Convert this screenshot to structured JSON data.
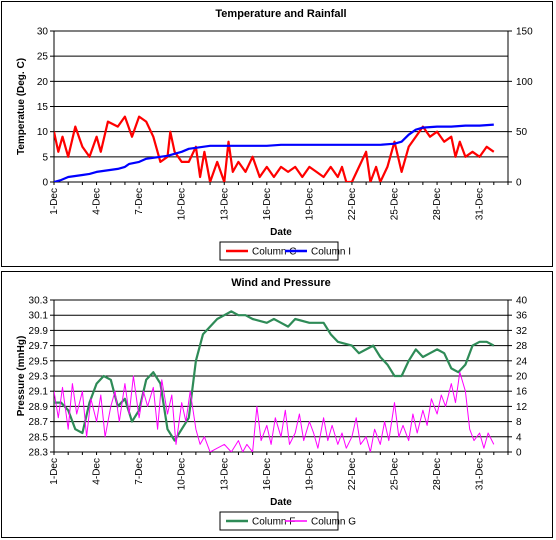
{
  "chart_data": [
    {
      "type": "line",
      "title": "Temperature and Rainfall",
      "xlabel": "Date",
      "ylabel": "Temperatue (Deg. C)",
      "x_tick_labels": [
        "1-Dec",
        "4-Dec",
        "7-Dec",
        "10-Dec",
        "13-Dec",
        "16-Dec",
        "19-Dec",
        "22-Dec",
        "25-Dec",
        "28-Dec",
        "31-Dec"
      ],
      "x_range": [
        1,
        33
      ],
      "y_ticks": [
        "0",
        "5",
        "10",
        "15",
        "20",
        "25",
        "30"
      ],
      "y2_ticks": [
        "0",
        "50",
        "100",
        "150"
      ],
      "ylim": [
        0,
        30
      ],
      "y2lim": [
        0,
        150
      ],
      "grid": true,
      "legend_position": "bottom",
      "series": [
        {
          "name": "Column C",
          "axis": "left",
          "color": "#ff0000",
          "points": [
            [
              1,
              10
            ],
            [
              1.3,
              6
            ],
            [
              1.6,
              9
            ],
            [
              2,
              5
            ],
            [
              2.5,
              11
            ],
            [
              3,
              7
            ],
            [
              3.5,
              5
            ],
            [
              4,
              9
            ],
            [
              4.3,
              6
            ],
            [
              4.8,
              12
            ],
            [
              5.5,
              11
            ],
            [
              6,
              13
            ],
            [
              6.5,
              9
            ],
            [
              7,
              13
            ],
            [
              7.5,
              12
            ],
            [
              8,
              9
            ],
            [
              8.5,
              4
            ],
            [
              9,
              5
            ],
            [
              9.2,
              10
            ],
            [
              9.5,
              6
            ],
            [
              10,
              4
            ],
            [
              10.5,
              4
            ],
            [
              11,
              7
            ],
            [
              11.3,
              1
            ],
            [
              11.6,
              6
            ],
            [
              12,
              0
            ],
            [
              12.5,
              4
            ],
            [
              13,
              0
            ],
            [
              13.3,
              8
            ],
            [
              13.6,
              2
            ],
            [
              14,
              4
            ],
            [
              14.5,
              2
            ],
            [
              15,
              5
            ],
            [
              15.5,
              1
            ],
            [
              16,
              3
            ],
            [
              16.5,
              1
            ],
            [
              17,
              3
            ],
            [
              17.5,
              2
            ],
            [
              18,
              3
            ],
            [
              18.5,
              1
            ],
            [
              19,
              3
            ],
            [
              19.5,
              2
            ],
            [
              20,
              1
            ],
            [
              20.5,
              3
            ],
            [
              21,
              1
            ],
            [
              21.3,
              3
            ],
            [
              21.6,
              0
            ],
            [
              22,
              0
            ],
            [
              22.5,
              3
            ],
            [
              23,
              6
            ],
            [
              23.3,
              0
            ],
            [
              23.7,
              3
            ],
            [
              24,
              0
            ],
            [
              24.5,
              3
            ],
            [
              25,
              8
            ],
            [
              25.5,
              2
            ],
            [
              26,
              7
            ],
            [
              26.5,
              9
            ],
            [
              27,
              11
            ],
            [
              27.5,
              9
            ],
            [
              28,
              10
            ],
            [
              28.5,
              8
            ],
            [
              29,
              9
            ],
            [
              29.3,
              5
            ],
            [
              29.6,
              8
            ],
            [
              30,
              5
            ],
            [
              30.5,
              6
            ],
            [
              31,
              5
            ],
            [
              31.5,
              7
            ],
            [
              32,
              6
            ]
          ]
        },
        {
          "name": "Column I",
          "axis": "right",
          "color": "#0000ff",
          "points": [
            [
              1,
              0
            ],
            [
              1.5,
              2
            ],
            [
              2,
              5
            ],
            [
              2.5,
              6
            ],
            [
              3,
              7
            ],
            [
              3.5,
              8
            ],
            [
              4,
              10
            ],
            [
              4.5,
              11
            ],
            [
              5,
              12
            ],
            [
              5.5,
              13
            ],
            [
              6,
              15
            ],
            [
              6.3,
              18
            ],
            [
              7,
              20
            ],
            [
              7.5,
              23
            ],
            [
              8,
              24
            ],
            [
              8.5,
              25
            ],
            [
              9,
              26
            ],
            [
              9.5,
              28
            ],
            [
              10,
              30
            ],
            [
              10.5,
              33
            ],
            [
              11,
              34
            ],
            [
              11.5,
              35
            ],
            [
              12,
              36
            ],
            [
              13,
              36
            ],
            [
              14,
              36
            ],
            [
              15,
              36
            ],
            [
              16,
              36
            ],
            [
              17,
              37
            ],
            [
              18,
              37
            ],
            [
              19,
              37
            ],
            [
              20,
              37
            ],
            [
              21,
              37
            ],
            [
              22,
              37
            ],
            [
              23,
              37
            ],
            [
              24,
              37
            ],
            [
              25,
              38
            ],
            [
              25.5,
              40
            ],
            [
              26,
              47
            ],
            [
              26.5,
              52
            ],
            [
              27,
              54
            ],
            [
              28,
              55
            ],
            [
              29,
              55
            ],
            [
              30,
              56
            ],
            [
              31,
              56
            ],
            [
              32,
              57
            ]
          ]
        }
      ]
    },
    {
      "type": "line",
      "title": "Wind and Pressure",
      "xlabel": "Date",
      "ylabel": "Pressure (mnHg)",
      "x_tick_labels": [
        "1-Dec",
        "4-Dec",
        "7-Dec",
        "10-Dec",
        "13-Dec",
        "16-Dec",
        "19-Dec",
        "22-Dec",
        "25-Dec",
        "28-Dec",
        "31-Dec"
      ],
      "x_range": [
        1,
        33
      ],
      "y_ticks": [
        "28.3",
        "28.5",
        "28.7",
        "28.9",
        "29.1",
        "29.3",
        "29.5",
        "29.7",
        "29.9",
        "30.1",
        "30.3"
      ],
      "y2_ticks": [
        "0",
        "4",
        "8",
        "12",
        "16",
        "20",
        "24",
        "28",
        "32",
        "36",
        "40"
      ],
      "ylim": [
        28.3,
        30.3
      ],
      "y2lim": [
        0,
        40
      ],
      "grid": true,
      "legend_position": "bottom",
      "series": [
        {
          "name": "Column F",
          "axis": "left",
          "color": "#2e8b57",
          "points": [
            [
              1,
              28.95
            ],
            [
              1.5,
              28.95
            ],
            [
              2,
              28.85
            ],
            [
              2.5,
              28.6
            ],
            [
              3,
              28.55
            ],
            [
              3.5,
              28.95
            ],
            [
              4,
              29.2
            ],
            [
              4.5,
              29.3
            ],
            [
              5,
              29.25
            ],
            [
              5.5,
              28.9
            ],
            [
              6,
              29.0
            ],
            [
              6.5,
              28.7
            ],
            [
              7,
              28.85
            ],
            [
              7.5,
              29.25
            ],
            [
              8,
              29.35
            ],
            [
              8.5,
              29.2
            ],
            [
              9,
              28.6
            ],
            [
              9.5,
              28.45
            ],
            [
              10,
              28.6
            ],
            [
              10.5,
              28.75
            ],
            [
              11,
              29.5
            ],
            [
              11.5,
              29.85
            ],
            [
              12,
              29.95
            ],
            [
              12.5,
              30.05
            ],
            [
              13,
              30.1
            ],
            [
              13.5,
              30.15
            ],
            [
              14,
              30.1
            ],
            [
              14.5,
              30.1
            ],
            [
              15,
              30.05
            ],
            [
              16,
              30.0
            ],
            [
              16.5,
              30.05
            ],
            [
              17,
              30.0
            ],
            [
              17.5,
              29.95
            ],
            [
              18,
              30.05
            ],
            [
              19,
              30.0
            ],
            [
              20,
              30.0
            ],
            [
              20.5,
              29.85
            ],
            [
              21,
              29.75
            ],
            [
              22,
              29.7
            ],
            [
              22.5,
              29.6
            ],
            [
              23,
              29.65
            ],
            [
              23.5,
              29.7
            ],
            [
              24,
              29.55
            ],
            [
              24.5,
              29.45
            ],
            [
              25,
              29.3
            ],
            [
              25.5,
              29.3
            ],
            [
              26,
              29.5
            ],
            [
              26.5,
              29.65
            ],
            [
              27,
              29.55
            ],
            [
              27.5,
              29.6
            ],
            [
              28,
              29.65
            ],
            [
              28.5,
              29.6
            ],
            [
              29,
              29.4
            ],
            [
              29.5,
              29.35
            ],
            [
              30,
              29.45
            ],
            [
              30.5,
              29.7
            ],
            [
              31,
              29.75
            ],
            [
              31.5,
              29.75
            ],
            [
              32,
              29.7
            ]
          ]
        },
        {
          "name": "Column G",
          "axis": "right",
          "color": "#ff00ff",
          "points": [
            [
              1,
              16
            ],
            [
              1.3,
              9
            ],
            [
              1.6,
              17
            ],
            [
              2,
              6
            ],
            [
              2.3,
              18
            ],
            [
              2.6,
              10
            ],
            [
              3,
              16
            ],
            [
              3.3,
              4
            ],
            [
              3.6,
              14
            ],
            [
              4,
              8
            ],
            [
              4.3,
              15
            ],
            [
              4.6,
              4
            ],
            [
              5,
              12
            ],
            [
              5.3,
              16
            ],
            [
              5.6,
              8
            ],
            [
              6,
              18
            ],
            [
              6.3,
              10
            ],
            [
              6.6,
              20
            ],
            [
              7,
              9
            ],
            [
              7.3,
              16
            ],
            [
              7.6,
              12
            ],
            [
              8,
              17
            ],
            [
              8.3,
              6
            ],
            [
              8.6,
              19
            ],
            [
              9,
              10
            ],
            [
              9.3,
              15
            ],
            [
              9.6,
              2
            ],
            [
              10,
              13
            ],
            [
              10.3,
              8
            ],
            [
              10.6,
              16
            ],
            [
              11,
              6
            ],
            [
              11.3,
              2
            ],
            [
              11.6,
              4
            ],
            [
              12,
              0
            ],
            [
              12.5,
              1
            ],
            [
              13,
              2
            ],
            [
              13.5,
              0
            ],
            [
              14,
              3
            ],
            [
              14.3,
              0
            ],
            [
              14.6,
              2
            ],
            [
              15,
              0
            ],
            [
              15.3,
              12
            ],
            [
              15.6,
              3
            ],
            [
              16,
              7
            ],
            [
              16.3,
              2
            ],
            [
              16.6,
              9
            ],
            [
              17,
              4
            ],
            [
              17.3,
              11
            ],
            [
              17.6,
              2
            ],
            [
              18,
              5
            ],
            [
              18.3,
              10
            ],
            [
              18.6,
              3
            ],
            [
              19,
              8
            ],
            [
              19.3,
              5
            ],
            [
              19.6,
              1
            ],
            [
              20,
              9
            ],
            [
              20.3,
              3
            ],
            [
              20.6,
              7
            ],
            [
              21,
              2
            ],
            [
              21.3,
              5
            ],
            [
              21.6,
              1
            ],
            [
              22,
              4
            ],
            [
              22.3,
              9
            ],
            [
              22.6,
              2
            ],
            [
              23,
              4
            ],
            [
              23.3,
              0
            ],
            [
              23.6,
              6
            ],
            [
              24,
              2
            ],
            [
              24.3,
              8
            ],
            [
              24.6,
              3
            ],
            [
              25,
              13
            ],
            [
              25.3,
              4
            ],
            [
              25.6,
              7
            ],
            [
              26,
              3
            ],
            [
              26.3,
              10
            ],
            [
              26.6,
              5
            ],
            [
              27,
              11
            ],
            [
              27.3,
              7
            ],
            [
              27.6,
              14
            ],
            [
              28,
              10
            ],
            [
              28.3,
              15
            ],
            [
              28.6,
              12
            ],
            [
              29,
              18
            ],
            [
              29.3,
              13
            ],
            [
              29.6,
              21
            ],
            [
              30,
              16
            ],
            [
              30.3,
              6
            ],
            [
              30.6,
              3
            ],
            [
              31,
              5
            ],
            [
              31.3,
              1
            ],
            [
              31.6,
              5
            ],
            [
              32,
              2
            ]
          ]
        }
      ]
    }
  ]
}
